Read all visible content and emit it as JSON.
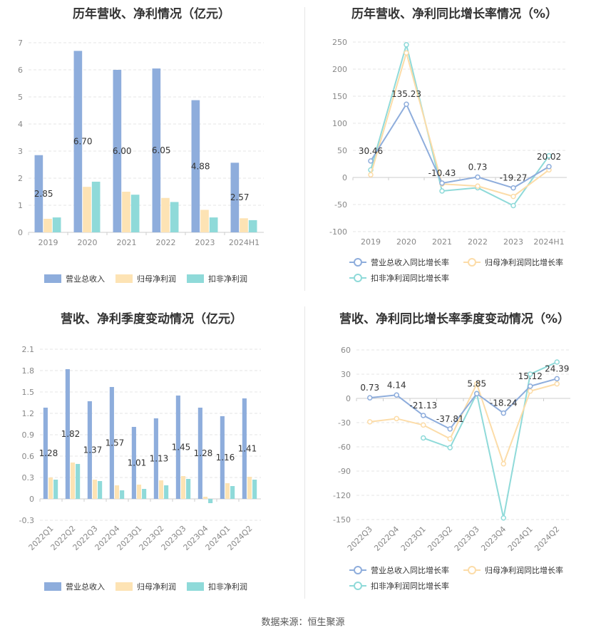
{
  "source_label": "数据来源：恒生聚源",
  "colors": {
    "revenue": "#8eaddc",
    "parent_profit": "#fde3b4",
    "deducted_profit": "#8fdad9",
    "revenue_line": "#8eaddc",
    "parent_line": "#fcdca8",
    "deducted_line": "#8fdad9",
    "grid": "#e6e6e6",
    "axis_text": "#888888",
    "label_text": "#333333"
  },
  "chart_data": [
    {
      "title": "历年营收、净利情况（亿元）",
      "type": "bar",
      "categories": [
        "2019",
        "2020",
        "2021",
        "2022",
        "2023",
        "2024H1"
      ],
      "ylim": [
        0,
        7
      ],
      "yticks": [
        0,
        1,
        2,
        3,
        4,
        5,
        6,
        7
      ],
      "series": [
        {
          "name": "营业总收入",
          "values": [
            2.85,
            6.7,
            6.0,
            6.05,
            4.88,
            2.57
          ],
          "labels": [
            "2.85",
            "6.70",
            "6.00",
            "6.05",
            "4.88",
            "2.57"
          ]
        },
        {
          "name": "归母净利润",
          "values": [
            0.5,
            1.68,
            1.5,
            1.27,
            0.83,
            0.52
          ]
        },
        {
          "name": "扣非净利润",
          "values": [
            0.55,
            1.87,
            1.39,
            1.12,
            0.55,
            0.45
          ]
        }
      ],
      "legend": "bottom"
    },
    {
      "title": "历年营收、净利同比增长率情况（%）",
      "type": "line",
      "categories": [
        "2019",
        "2020",
        "2021",
        "2022",
        "2023",
        "2024H1"
      ],
      "ylim": [
        -100,
        250
      ],
      "yticks": [
        -100,
        -50,
        0,
        50,
        100,
        150,
        200,
        250
      ],
      "series": [
        {
          "name": "营业总收入同比增长率",
          "values": [
            30.46,
            135.23,
            -10.43,
            0.73,
            -19.27,
            20.02
          ],
          "labels": [
            "30.46",
            "135.23",
            "-10.43",
            "0.73",
            "-19.27",
            "20.02"
          ]
        },
        {
          "name": "归母净利润同比增长率",
          "values": [
            5,
            230,
            -12,
            -16,
            -35,
            14
          ]
        },
        {
          "name": "扣非净利润同比增长率",
          "values": [
            14,
            245,
            -25,
            -19,
            -52,
            40
          ]
        }
      ],
      "legend": "bottom"
    },
    {
      "title": "营收、净利季度变动情况（亿元）",
      "type": "bar",
      "categories": [
        "2022Q1",
        "2022Q2",
        "2022Q3",
        "2022Q4",
        "2023Q1",
        "2023Q2",
        "2023Q3",
        "2023Q4",
        "2024Q1",
        "2024Q2"
      ],
      "ylim": [
        -0.3,
        2.1
      ],
      "yticks": [
        -0.3,
        0,
        0.3,
        0.6,
        0.9,
        1.2,
        1.5,
        1.8,
        2.1
      ],
      "series": [
        {
          "name": "营业总收入",
          "values": [
            1.28,
            1.82,
            1.37,
            1.57,
            1.01,
            1.13,
            1.45,
            1.28,
            1.16,
            1.41
          ],
          "labels": [
            "1.28",
            "1.82",
            "1.37",
            "1.57",
            "1.01",
            "1.13",
            "1.45",
            "1.28",
            "1.16",
            "1.41"
          ]
        },
        {
          "name": "归母净利润",
          "values": [
            0.3,
            0.51,
            0.27,
            0.19,
            0.2,
            0.26,
            0.32,
            0.03,
            0.22,
            0.31
          ]
        },
        {
          "name": "扣非净利润",
          "values": [
            0.27,
            0.49,
            0.25,
            0.12,
            0.14,
            0.19,
            0.28,
            -0.06,
            0.18,
            0.27
          ]
        }
      ],
      "legend": "bottom"
    },
    {
      "title": "营收、净利同比增长率季度变动情况（%）",
      "type": "line",
      "categories": [
        "2022Q3",
        "2022Q4",
        "2023Q1",
        "2023Q2",
        "2023Q3",
        "2023Q4",
        "2024Q1",
        "2024Q2"
      ],
      "ylim": [
        -150,
        60
      ],
      "yticks": [
        -150,
        -120,
        -90,
        -60,
        -30,
        0,
        30,
        60
      ],
      "series": [
        {
          "name": "营业总收入同比增长率",
          "values": [
            0.73,
            4.14,
            -21.13,
            -37.81,
            5.85,
            -18.24,
            15.12,
            24.39
          ],
          "labels": [
            "0.73",
            "4.14",
            "-21.13",
            "-37.81",
            "5.85",
            "-18.24",
            "15.12",
            "24.39"
          ]
        },
        {
          "name": "归母净利润同比增长率",
          "values": [
            -29,
            -25,
            -33,
            -50,
            18,
            -81,
            9,
            18
          ]
        },
        {
          "name": "扣非净利润同比增长率",
          "values": [
            null,
            null,
            -49,
            -61,
            6,
            -148,
            30,
            45
          ]
        }
      ],
      "legend": "bottom"
    }
  ]
}
